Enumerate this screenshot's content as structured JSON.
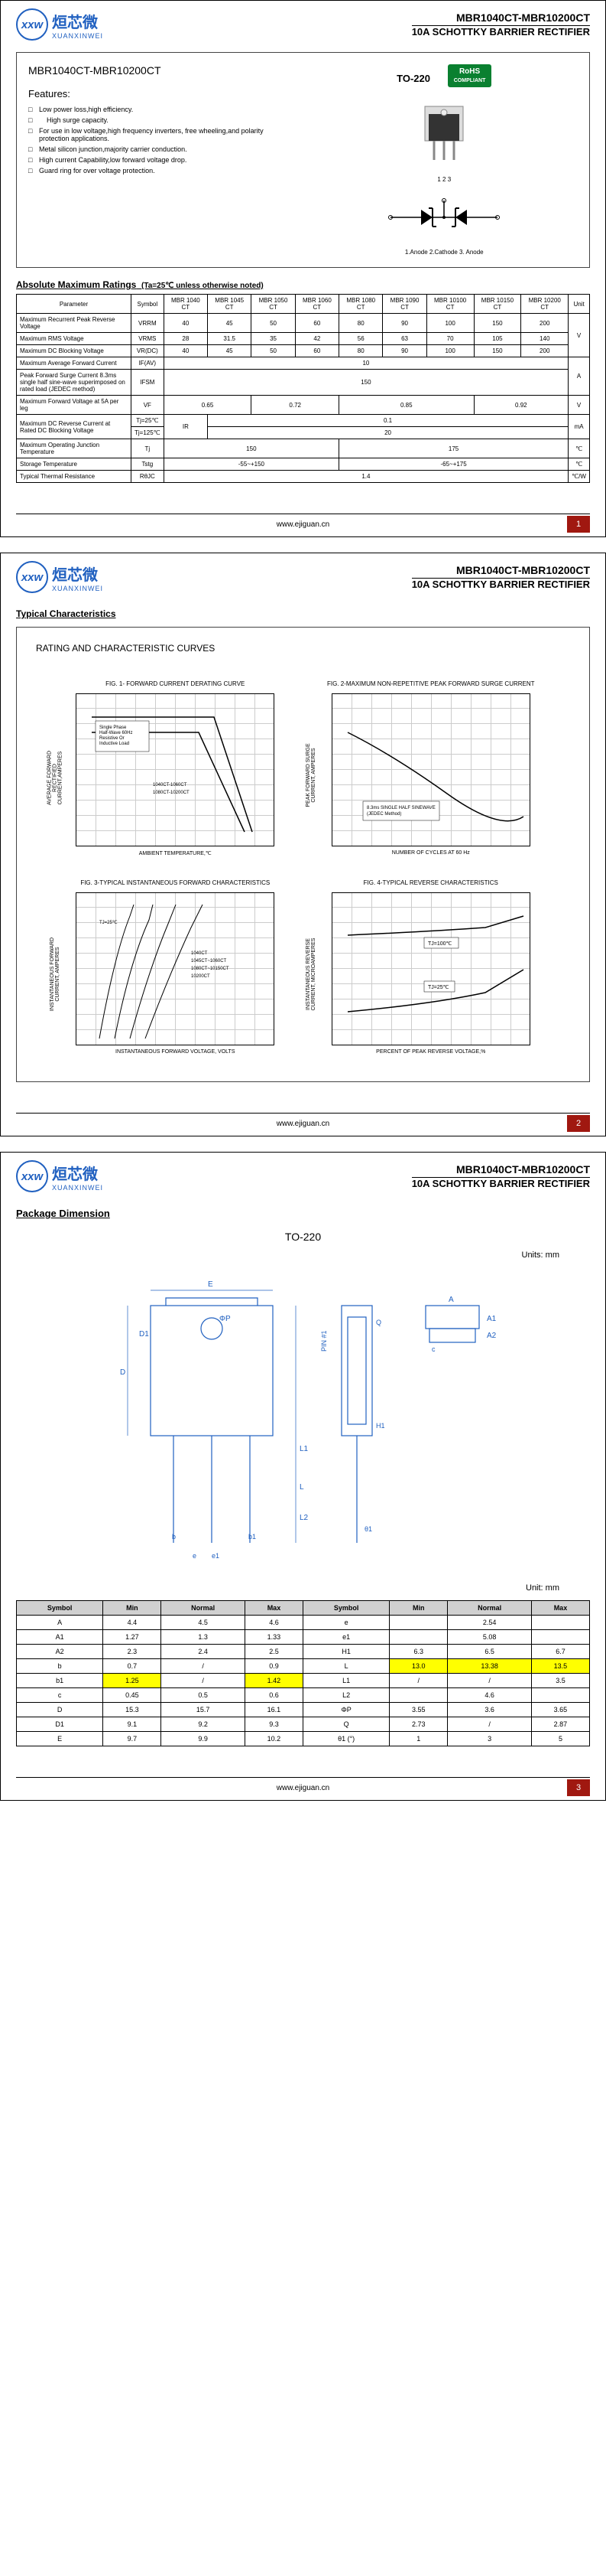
{
  "logo": {
    "abbr": "xxw",
    "cn": "烜芯微",
    "en": "XUANXINWEI"
  },
  "header": {
    "part_range": "MBR1040CT-MBR10200CT",
    "subtitle": "10A SCHOTTKY BARRIER RECTIFIER"
  },
  "footer": {
    "url": "www.ejiguan.cn"
  },
  "page1": {
    "part_title": "MBR1040CT-MBR10200CT",
    "features_title": "Features:",
    "features": [
      "Low power loss,high efficiency.",
      "High surge capacity.",
      "For use in low voltage,high frequency inverters, free wheeling,and polarity protection applications.",
      "Metal silicon junction,majority carrier conduction.",
      "High current Capability,low forward voltage drop.",
      "Guard ring for over voltage protection."
    ],
    "pkg_label": "TO-220",
    "rohs": "RoHS",
    "rohs_sub": "COMPLIANT",
    "pin_labels_top": "1 2 3",
    "pin_labels_bottom": "1.Anode  2.Cathode  3. Anode",
    "ratings_title": "Absolute Maximum Ratings",
    "ratings_note": "(Ta=25℃ unless otherwise noted)",
    "columns": [
      "Parameter",
      "Symbol",
      "MBR 1040 CT",
      "MBR 1045 CT",
      "MBR 1050 CT",
      "MBR 1060 CT",
      "MBR 1080 CT",
      "MBR 1090 CT",
      "MBR 10100 CT",
      "MBR 10150 CT",
      "MBR 10200 CT",
      "Unit"
    ],
    "rows": [
      {
        "param": "Maximum Recurrent Peak Reverse Voltage",
        "sym": "VRRM",
        "vals": [
          "40",
          "45",
          "50",
          "60",
          "80",
          "90",
          "100",
          "150",
          "200"
        ],
        "unit": "V"
      },
      {
        "param": "Maximum RMS Voltage",
        "sym": "VRMS",
        "vals": [
          "28",
          "31.5",
          "35",
          "42",
          "56",
          "63",
          "70",
          "105",
          "140"
        ],
        "unit": "V"
      },
      {
        "param": "Maximum DC Blocking Voltage",
        "sym": "VR(DC)",
        "vals": [
          "40",
          "45",
          "50",
          "60",
          "80",
          "90",
          "100",
          "150",
          "200"
        ],
        "unit": "V"
      },
      {
        "param": "Maximum Average Forward Current",
        "sym": "IF(AV)",
        "span": "10",
        "unit": "A"
      },
      {
        "param": "Peak Forward Surge Current 8.3ms single half sine-wave superimposed on rated load (JEDEC method)",
        "sym": "IFSM",
        "span": "150",
        "unit": "A"
      }
    ],
    "vf_row": {
      "param": "Maximum Forward Voltage at 5A per leg",
      "sym": "VF",
      "v1": "0.65",
      "v2": "0.72",
      "v3": "0.85",
      "v4": "0.92",
      "unit": "V"
    },
    "ir_row": {
      "param": "Maximum DC Reverse Current at Rated DC Blocking Voltage",
      "c1": "Tj=25℃",
      "c2": "Tj=125℃",
      "sym": "IR",
      "v1": "0.1",
      "v2": "20",
      "unit": "mA"
    },
    "tj_row": {
      "param": "Maximum Operating Junction Temperature",
      "sym": "Tj",
      "v1": "150",
      "v2": "175",
      "unit": "℃"
    },
    "tstg_row": {
      "param": "Storage Temperature",
      "sym": "Tstg",
      "v1": "-55~+150",
      "v2": "-65~+175",
      "unit": "℃"
    },
    "rth_row": {
      "param": "Typical Thermal Resistance",
      "sym": "RθJC",
      "v": "1.4",
      "unit": "℃/W"
    }
  },
  "page2": {
    "section": "Typical Characteristics",
    "box_title": "RATING AND CHARACTERISTIC CURVES",
    "fig1": {
      "title": "FIG. 1- FORWARD CURRENT DERATING CURVE",
      "xlabel": "AMBIENT TEMPERATURE,℃",
      "ylabel": "AVERAGE FORWARD RECTIFIED CURRENT,AMPERES"
    },
    "fig2": {
      "title": "FIG. 2-MAXIMUM NON-REPETITIVE PEAK FORWARD SURGE CURRENT",
      "xlabel": "NUMBER OF CYCLES AT 60 Hz",
      "ylabel": "PEAK FORWARD SURGE CURRENT, AMPERES"
    },
    "fig3": {
      "title": "FIG. 3-TYPICAL INSTANTANEOUS FORWARD CHARACTERISTICS",
      "xlabel": "INSTANTANEOUS FORWARD VOLTAGE, VOLTS",
      "ylabel": "INSTANTANEOUS FORWARD CURRENT, AMPERES"
    },
    "fig4": {
      "title": "FIG. 4-TYPICAL REVERSE CHARACTERISTICS",
      "xlabel": "PERCENT OF PEAK REVERSE VOLTAGE,%",
      "ylabel": "INSTANTANEOUS REVERSE CURRENT, MICROAMPERES"
    }
  },
  "page3": {
    "section": "Package Dimension",
    "pkg": "TO-220",
    "units_label": "Units: mm",
    "units_label2": "Unit: mm",
    "dim_cols": [
      "Symbol",
      "Min",
      "Normal",
      "Max",
      "Symbol",
      "Min",
      "Normal",
      "Max"
    ],
    "dim_rows": [
      [
        "A",
        "4.4",
        "4.5",
        "4.6",
        "e",
        "",
        "2.54",
        ""
      ],
      [
        "A1",
        "1.27",
        "1.3",
        "1.33",
        "e1",
        "",
        "5.08",
        ""
      ],
      [
        "A2",
        "2.3",
        "2.4",
        "2.5",
        "H1",
        "6.3",
        "6.5",
        "6.7"
      ],
      [
        "b",
        "0.7",
        "/",
        "0.9",
        "L",
        "13.0",
        "13.38",
        "13.5"
      ],
      [
        "b1",
        "1.25",
        "/",
        "1.42",
        "L1",
        "/",
        "/",
        "3.5"
      ],
      [
        "c",
        "0.45",
        "0.5",
        "0.6",
        "L2",
        "",
        "4.6",
        ""
      ],
      [
        "D",
        "15.3",
        "15.7",
        "16.1",
        "ΦP",
        "3.55",
        "3.6",
        "3.65"
      ],
      [
        "D1",
        "9.1",
        "9.2",
        "9.3",
        "Q",
        "2.73",
        "/",
        "2.87"
      ],
      [
        "E",
        "9.7",
        "9.9",
        "10.2",
        "θ1 (°)",
        "1",
        "3",
        "5"
      ]
    ]
  }
}
